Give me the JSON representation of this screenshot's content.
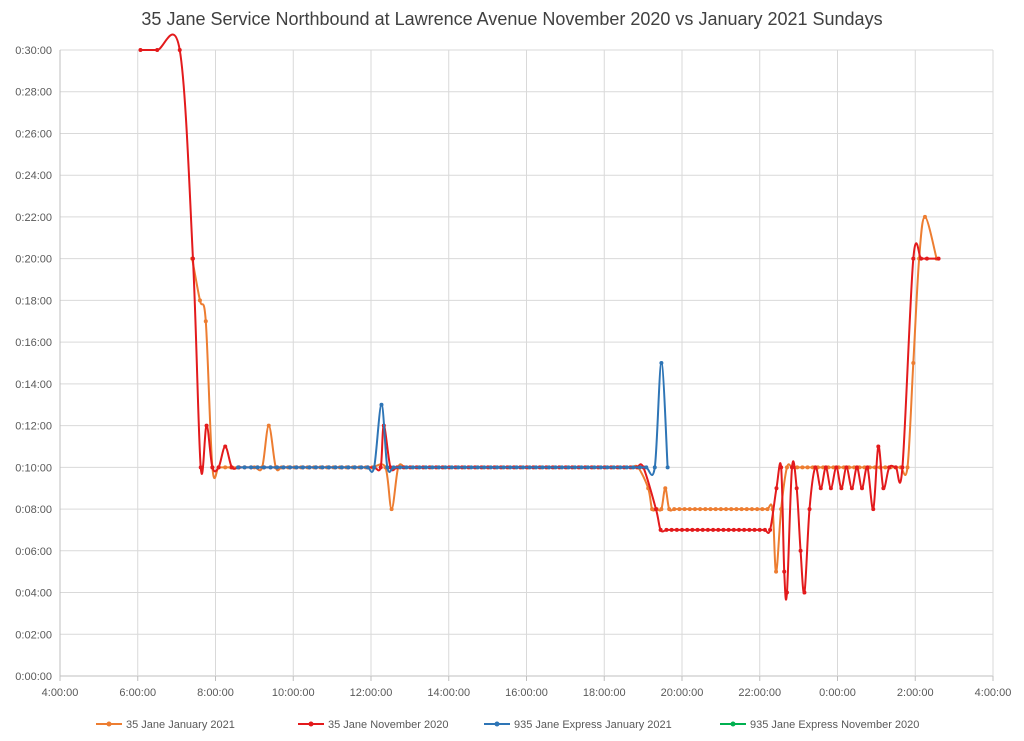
{
  "chart_data": {
    "type": "line",
    "title": "35 Jane Service Northbound at Lawrence Avenue November 2020 vs January 2021 Sundays",
    "xlabel": "",
    "ylabel": "",
    "x_unit": "hours since midnight (24-30 = after midnight next day)",
    "y_unit": "headway in minutes",
    "xlim": [
      4,
      28
    ],
    "ylim": [
      0,
      30
    ],
    "x_ticks": [
      4,
      6,
      8,
      10,
      12,
      14,
      16,
      18,
      20,
      22,
      24,
      26,
      28
    ],
    "x_tick_labels": [
      "4:00:00",
      "6:00:00",
      "8:00:00",
      "10:00:00",
      "12:00:00",
      "14:00:00",
      "16:00:00",
      "18:00:00",
      "20:00:00",
      "22:00:00",
      "0:00:00",
      "2:00:00",
      "4:00:00"
    ],
    "y_ticks": [
      0,
      2,
      4,
      6,
      8,
      10,
      12,
      14,
      16,
      18,
      20,
      22,
      24,
      26,
      28,
      30
    ],
    "y_tick_labels": [
      "0:00:00",
      "0:02:00",
      "0:04:00",
      "0:06:00",
      "0:08:00",
      "0:10:00",
      "0:12:00",
      "0:14:00",
      "0:16:00",
      "0:18:00",
      "0:20:00",
      "0:22:00",
      "0:24:00",
      "0:26:00",
      "0:28:00",
      "0:30:00"
    ],
    "grid": true,
    "legend_position": "bottom",
    "series": [
      {
        "name": "35 Jane January 2021",
        "color": "#ED7D31",
        "points": [
          [
            7.4,
            20
          ],
          [
            7.6,
            18
          ],
          [
            7.75,
            17
          ],
          [
            7.92,
            10
          ],
          [
            8.08,
            10
          ],
          [
            8.25,
            10
          ],
          [
            8.4,
            10
          ],
          [
            8.6,
            10
          ],
          [
            9.0,
            10
          ],
          [
            9.2,
            10
          ],
          [
            9.37,
            12
          ],
          [
            9.55,
            10
          ],
          {
            "range": [
              9.7,
              12.2,
              0.1667,
              10
            ]
          },
          [
            12.37,
            10
          ],
          [
            12.53,
            8
          ],
          [
            12.7,
            10
          ],
          {
            "range": [
              12.87,
              19.0,
              0.1667,
              10
            ]
          },
          [
            19.13,
            9
          ],
          [
            19.23,
            8
          ],
          [
            19.35,
            8
          ],
          [
            19.47,
            8
          ],
          [
            19.57,
            9
          ],
          [
            19.67,
            8
          ],
          {
            "range": [
              19.8,
              22.2,
              0.1333,
              8
            ]
          },
          [
            22.33,
            8
          ],
          [
            22.42,
            5
          ],
          [
            22.55,
            8
          ],
          [
            22.7,
            10
          ],
          {
            "range": [
              22.83,
              25.63,
              0.1333,
              10
            ]
          },
          [
            25.8,
            10
          ],
          [
            25.95,
            15
          ],
          [
            26.1,
            20
          ],
          [
            26.25,
            22
          ],
          [
            26.55,
            20
          ]
        ]
      },
      {
        "name": "35 Jane November 2020",
        "color": "#E31A1C",
        "points": [
          [
            6.07,
            30
          ],
          [
            6.5,
            30
          ],
          [
            7.08,
            30
          ],
          [
            7.42,
            20
          ],
          [
            7.62,
            10
          ],
          [
            7.77,
            12
          ],
          [
            7.92,
            10
          ],
          [
            8.08,
            10
          ],
          [
            8.25,
            11
          ],
          [
            8.42,
            10
          ],
          [
            8.6,
            10
          ],
          {
            "range": [
              8.75,
              12.1,
              0.1667,
              10
            ]
          },
          [
            12.25,
            10
          ],
          [
            12.33,
            12
          ],
          [
            12.5,
            10
          ],
          {
            "range": [
              12.67,
              19.17,
              0.1667,
              10
            ]
          },
          [
            19.33,
            8
          ],
          [
            19.45,
            7
          ],
          {
            "range": [
              19.6,
              22.3,
              0.1333,
              7
            ]
          },
          [
            22.43,
            9
          ],
          [
            22.55,
            10
          ],
          [
            22.63,
            5
          ],
          [
            22.7,
            4
          ],
          [
            22.83,
            10
          ],
          [
            22.95,
            9
          ],
          [
            23.05,
            6
          ],
          [
            23.15,
            4
          ],
          [
            23.28,
            8
          ],
          [
            23.43,
            10
          ],
          [
            23.57,
            9
          ],
          [
            23.7,
            10
          ],
          [
            23.83,
            9
          ],
          [
            23.97,
            10
          ],
          [
            24.1,
            9
          ],
          [
            24.23,
            10
          ],
          [
            24.37,
            9
          ],
          [
            24.5,
            10
          ],
          [
            24.63,
            9
          ],
          [
            24.77,
            10
          ],
          [
            24.92,
            8
          ],
          [
            25.05,
            11
          ],
          [
            25.18,
            9
          ],
          [
            25.33,
            10
          ],
          [
            25.5,
            10
          ],
          [
            25.67,
            10
          ],
          [
            25.95,
            20
          ],
          [
            26.15,
            20
          ],
          [
            26.3,
            20
          ],
          [
            26.6,
            20
          ]
        ]
      },
      {
        "name": "935 Jane Express January 2021",
        "color": "#2E75B6",
        "points": [
          {
            "range": [
              8.58,
              12.17,
              0.1667,
              10
            ]
          },
          [
            12.27,
            13
          ],
          [
            12.42,
            10
          ],
          {
            "range": [
              12.58,
              19.17,
              0.1667,
              10
            ]
          },
          [
            19.3,
            10
          ],
          [
            19.47,
            15
          ],
          [
            19.63,
            10
          ]
        ]
      },
      {
        "name": "935 Jane Express November 2020",
        "color": "#00B050",
        "points": []
      }
    ]
  }
}
